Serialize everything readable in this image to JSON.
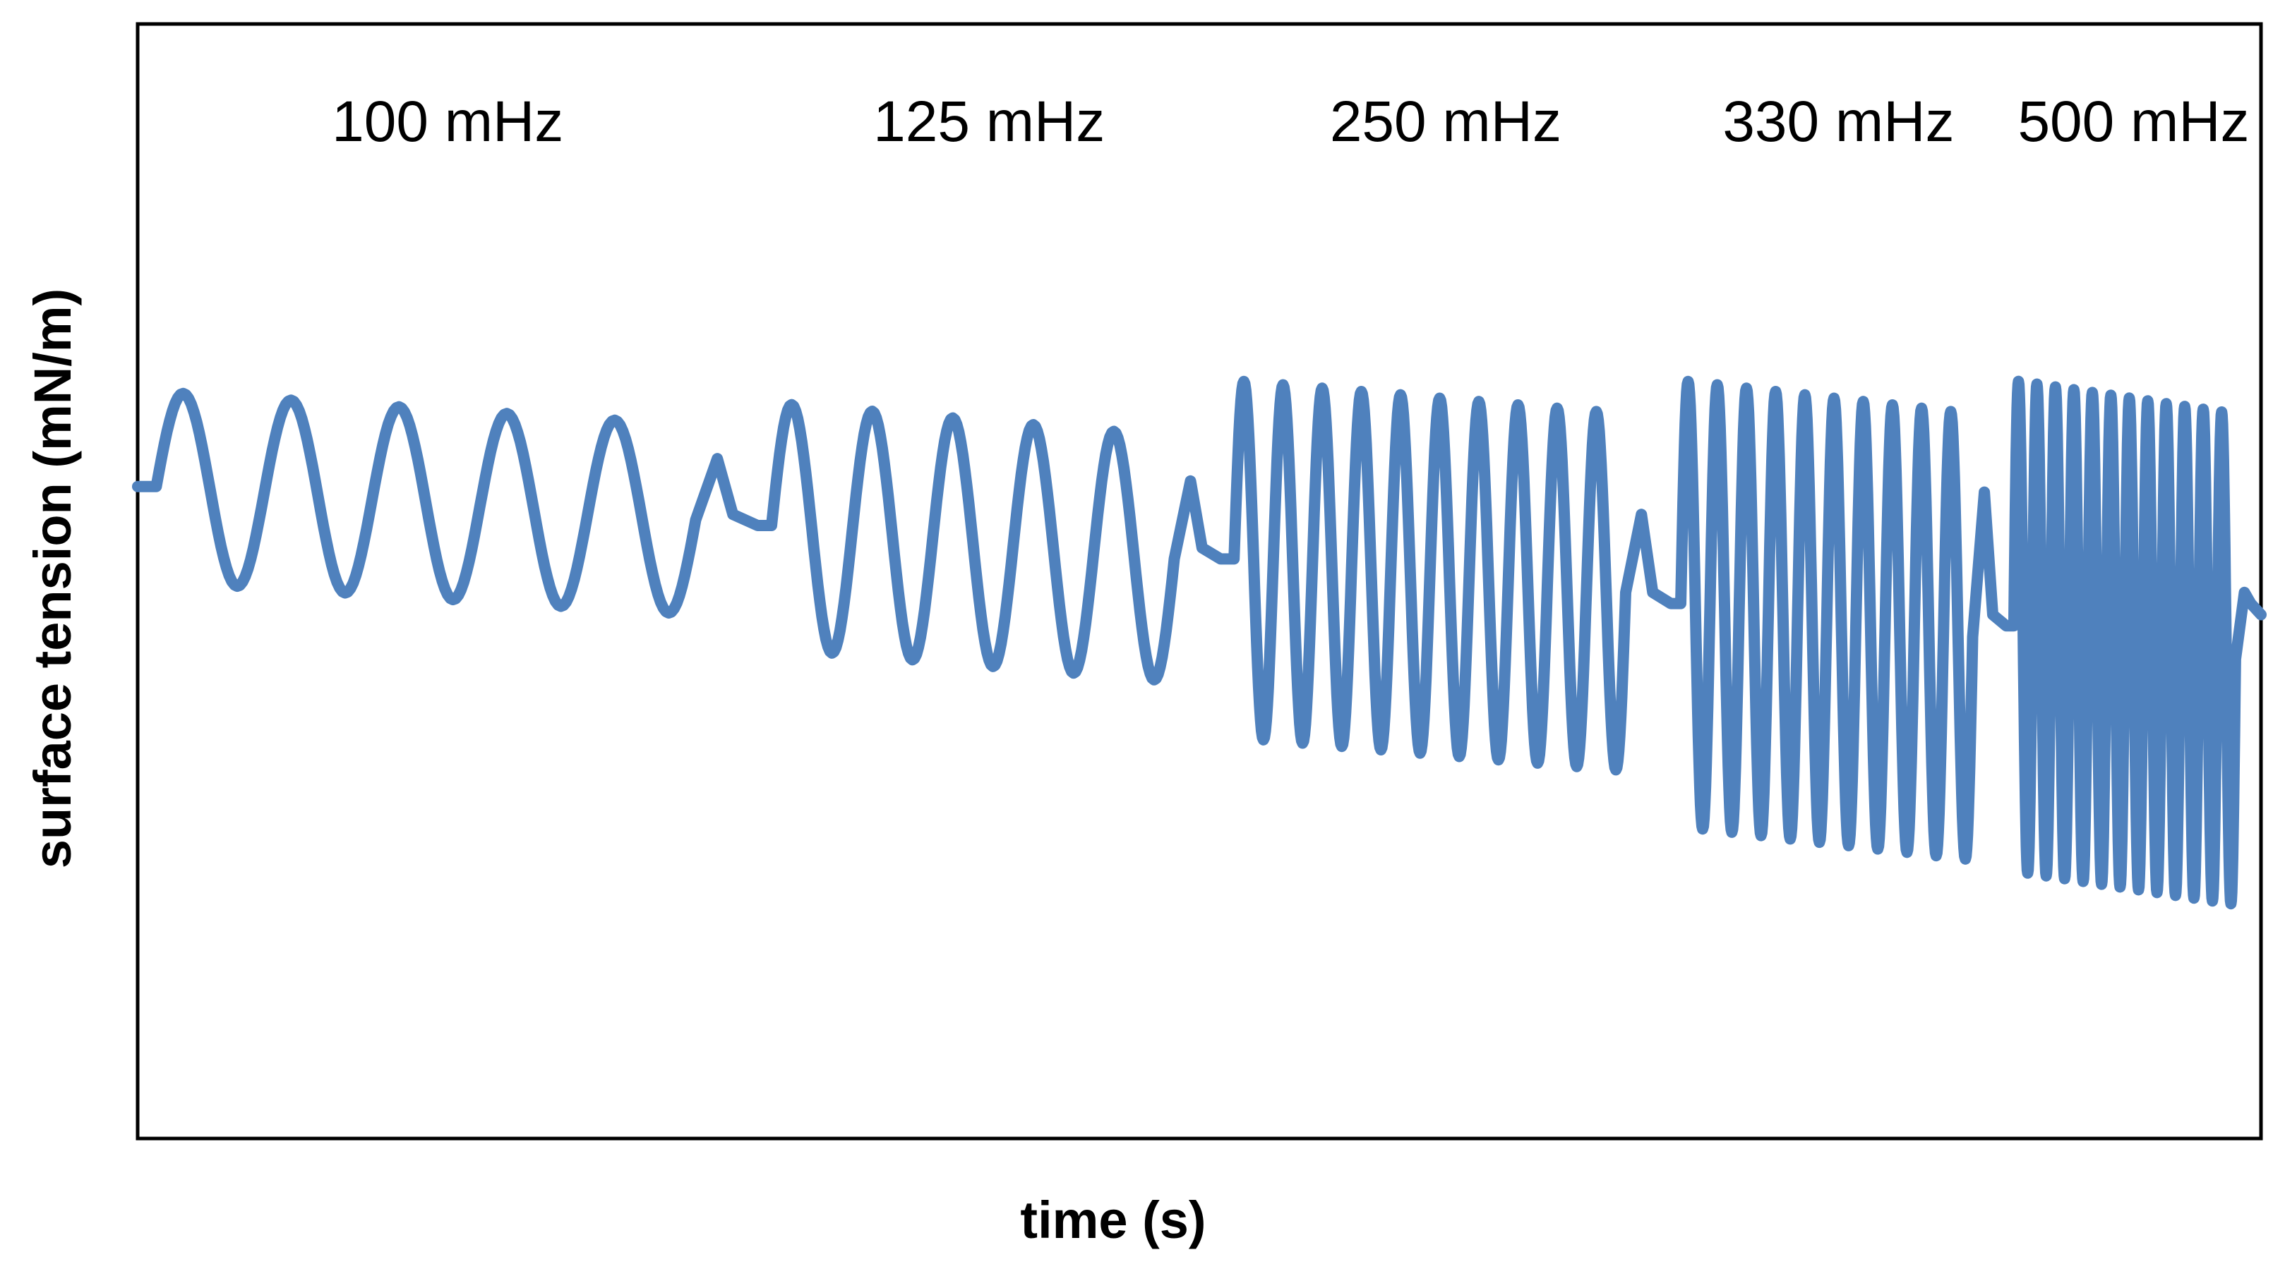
{
  "chart_data": {
    "type": "line",
    "title": "",
    "xlabel": "time (s)",
    "ylabel": "surface tension (mN/m)",
    "x_tick_labels_shown": false,
    "y_tick_labels_shown": false,
    "grid": false,
    "legend": "none",
    "series_color": "#4f81bd",
    "segments": [
      {
        "label": "100 mHz",
        "frequency_mHz": 100,
        "cycles": 5,
        "baseline": 0.585,
        "amplitude": 0.085,
        "tail_peak": 0.61
      },
      {
        "label": "125 mHz",
        "frequency_mHz": 125,
        "cycles": 5,
        "baseline": 0.55,
        "amplitude": 0.11,
        "tail_peak": 0.59
      },
      {
        "label": "250 mHz",
        "frequency_mHz": 250,
        "cycles": 10,
        "baseline": 0.52,
        "amplitude": 0.16,
        "tail_peak": 0.56
      },
      {
        "label": "330 mHz",
        "frequency_mHz": 330,
        "cycles": 10,
        "baseline": 0.48,
        "amplitude": 0.2,
        "tail_peak": 0.58
      },
      {
        "label": "500 mHz",
        "frequency_mHz": 500,
        "cycles": 12,
        "baseline": 0.46,
        "amplitude": 0.22,
        "tail_peak": 0.49
      }
    ],
    "final_value": 0.47
  }
}
